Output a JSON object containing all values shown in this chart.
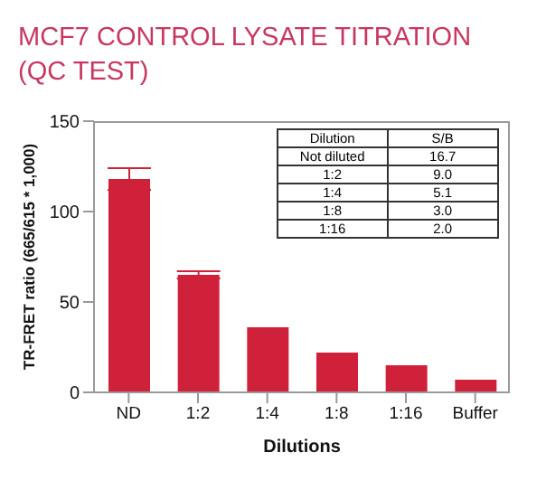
{
  "chart_data": {
    "type": "bar",
    "title": "MCF7 CONTROL LYSATE TITRATION (QC TEST)",
    "xlabel": "Dilutions",
    "ylabel": "TR-FRET ratio (665/615 * 1,000)",
    "categories": [
      "ND",
      "1:2",
      "1:4",
      "1:8",
      "1:16",
      "Buffer"
    ],
    "values": [
      118,
      65,
      36,
      22,
      15,
      7
    ],
    "errors": [
      6,
      2,
      null,
      null,
      null,
      null
    ],
    "color": "#d0213a",
    "ylim": [
      0,
      150
    ],
    "yticks": [
      0,
      50,
      100,
      150
    ],
    "annotations": [
      "Dilution",
      "S/B",
      "Not diluted",
      "16.7",
      "1:2",
      "9.0",
      "1:4",
      "5.1",
      "1:8",
      "3.0",
      "1:16",
      "2.0"
    ]
  }
}
